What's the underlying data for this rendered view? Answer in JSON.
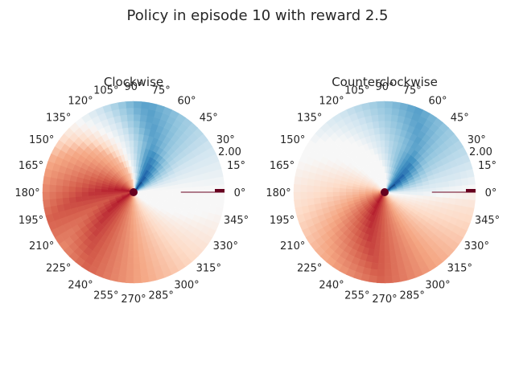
{
  "figure": {
    "title": "Policy in episode 10 with reward 2.5"
  },
  "chart_data": [
    {
      "type": "heatmap",
      "projection": "polar",
      "title": "Clockwise",
      "theta_tick_labels": [
        "0°",
        "15°",
        "30°",
        "45°",
        "60°",
        "75°",
        "90°",
        "105°",
        "120°",
        "135°",
        "150°",
        "165°",
        "180°",
        "195°",
        "210°",
        "225°",
        "240°",
        "255°",
        "270°",
        "285°",
        "300°",
        "315°",
        "330°",
        "345°"
      ],
      "radial_tick_labels": [
        "2.00"
      ],
      "r_lim": [
        0,
        2
      ],
      "colormap": "RdBu",
      "blue_centers_deg": [
        82
      ],
      "red_centers_deg": [
        200,
        240
      ],
      "swirl": 0.55
    },
    {
      "type": "heatmap",
      "projection": "polar",
      "title": "Counterclockwise",
      "theta_tick_labels": [
        "0°",
        "15°",
        "30°",
        "45°",
        "60°",
        "75°",
        "90°",
        "105°",
        "120°",
        "135°",
        "150°",
        "165°",
        "180°",
        "195°",
        "210°",
        "225°",
        "240°",
        "255°",
        "270°",
        "285°",
        "300°",
        "315°",
        "330°",
        "345°"
      ],
      "radial_tick_labels": [
        "2.00"
      ],
      "r_lim": [
        0,
        2
      ],
      "colormap": "RdBu",
      "blue_centers_deg": [
        70
      ],
      "red_centers_deg": [
        270
      ],
      "swirl": 0.6
    }
  ]
}
